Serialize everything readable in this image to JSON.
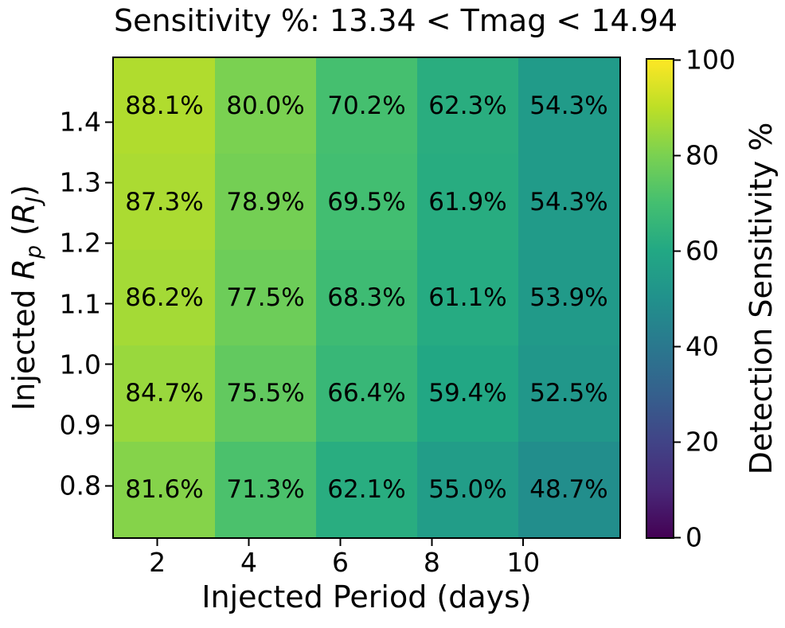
{
  "figure": {
    "background": "#ffffff",
    "text_color": "#000000"
  },
  "chart_data": {
    "type": "heatmap",
    "title": "Sensitivity %: 13.34 < Tmag < 14.94",
    "xlabel": "Injected Period (days)",
    "ylabel": "Injected Rp (RJ)",
    "ylabel_segments": [
      {
        "text": "Injected ",
        "italic": false,
        "sub": false
      },
      {
        "text": "R",
        "italic": true,
        "sub": false
      },
      {
        "text": "p",
        "italic": true,
        "sub": true
      },
      {
        "text": " (",
        "italic": false,
        "sub": false
      },
      {
        "text": "R",
        "italic": true,
        "sub": false
      },
      {
        "text": "J",
        "italic": true,
        "sub": true
      },
      {
        "text": ")",
        "italic": false,
        "sub": false
      }
    ],
    "values": [
      [
        88.1,
        80.0,
        70.2,
        62.3,
        54.3
      ],
      [
        87.3,
        78.9,
        69.5,
        61.9,
        54.3
      ],
      [
        86.2,
        77.5,
        68.3,
        61.1,
        53.9
      ],
      [
        84.7,
        75.5,
        66.4,
        59.4,
        52.5
      ],
      [
        81.6,
        71.3,
        62.1,
        55.0,
        48.7
      ]
    ],
    "value_suffix": "%",
    "value_decimals": 1,
    "x_ticks": {
      "labels": [
        "2",
        "4",
        "6",
        "8",
        "10"
      ],
      "values": [
        2,
        4,
        6,
        8,
        10
      ]
    },
    "x_axis_range": [
      1.05,
      12.1
    ],
    "y_ticks": {
      "labels": [
        "1.4",
        "1.3",
        "1.2",
        "1.1",
        "1.0",
        "0.9",
        "0.8"
      ],
      "values": [
        1.4,
        1.3,
        1.2,
        1.1,
        1.0,
        0.9,
        0.8
      ]
    },
    "y_axis_range": [
      0.715,
      1.505
    ],
    "grid": "off",
    "colorbar": {
      "label": "Detection Sensitivity %",
      "ticks": {
        "labels": [
          "0",
          "20",
          "40",
          "60",
          "80",
          "100"
        ],
        "values": [
          0,
          20,
          40,
          60,
          80,
          100
        ]
      },
      "range": [
        0,
        100
      ],
      "colormap": "viridis",
      "anchors": [
        "#440154",
        "#482878",
        "#414487",
        "#35608d",
        "#2a788e",
        "#21918c",
        "#22a884",
        "#44bf70",
        "#7ad151",
        "#bddf26",
        "#fde725"
      ]
    }
  }
}
